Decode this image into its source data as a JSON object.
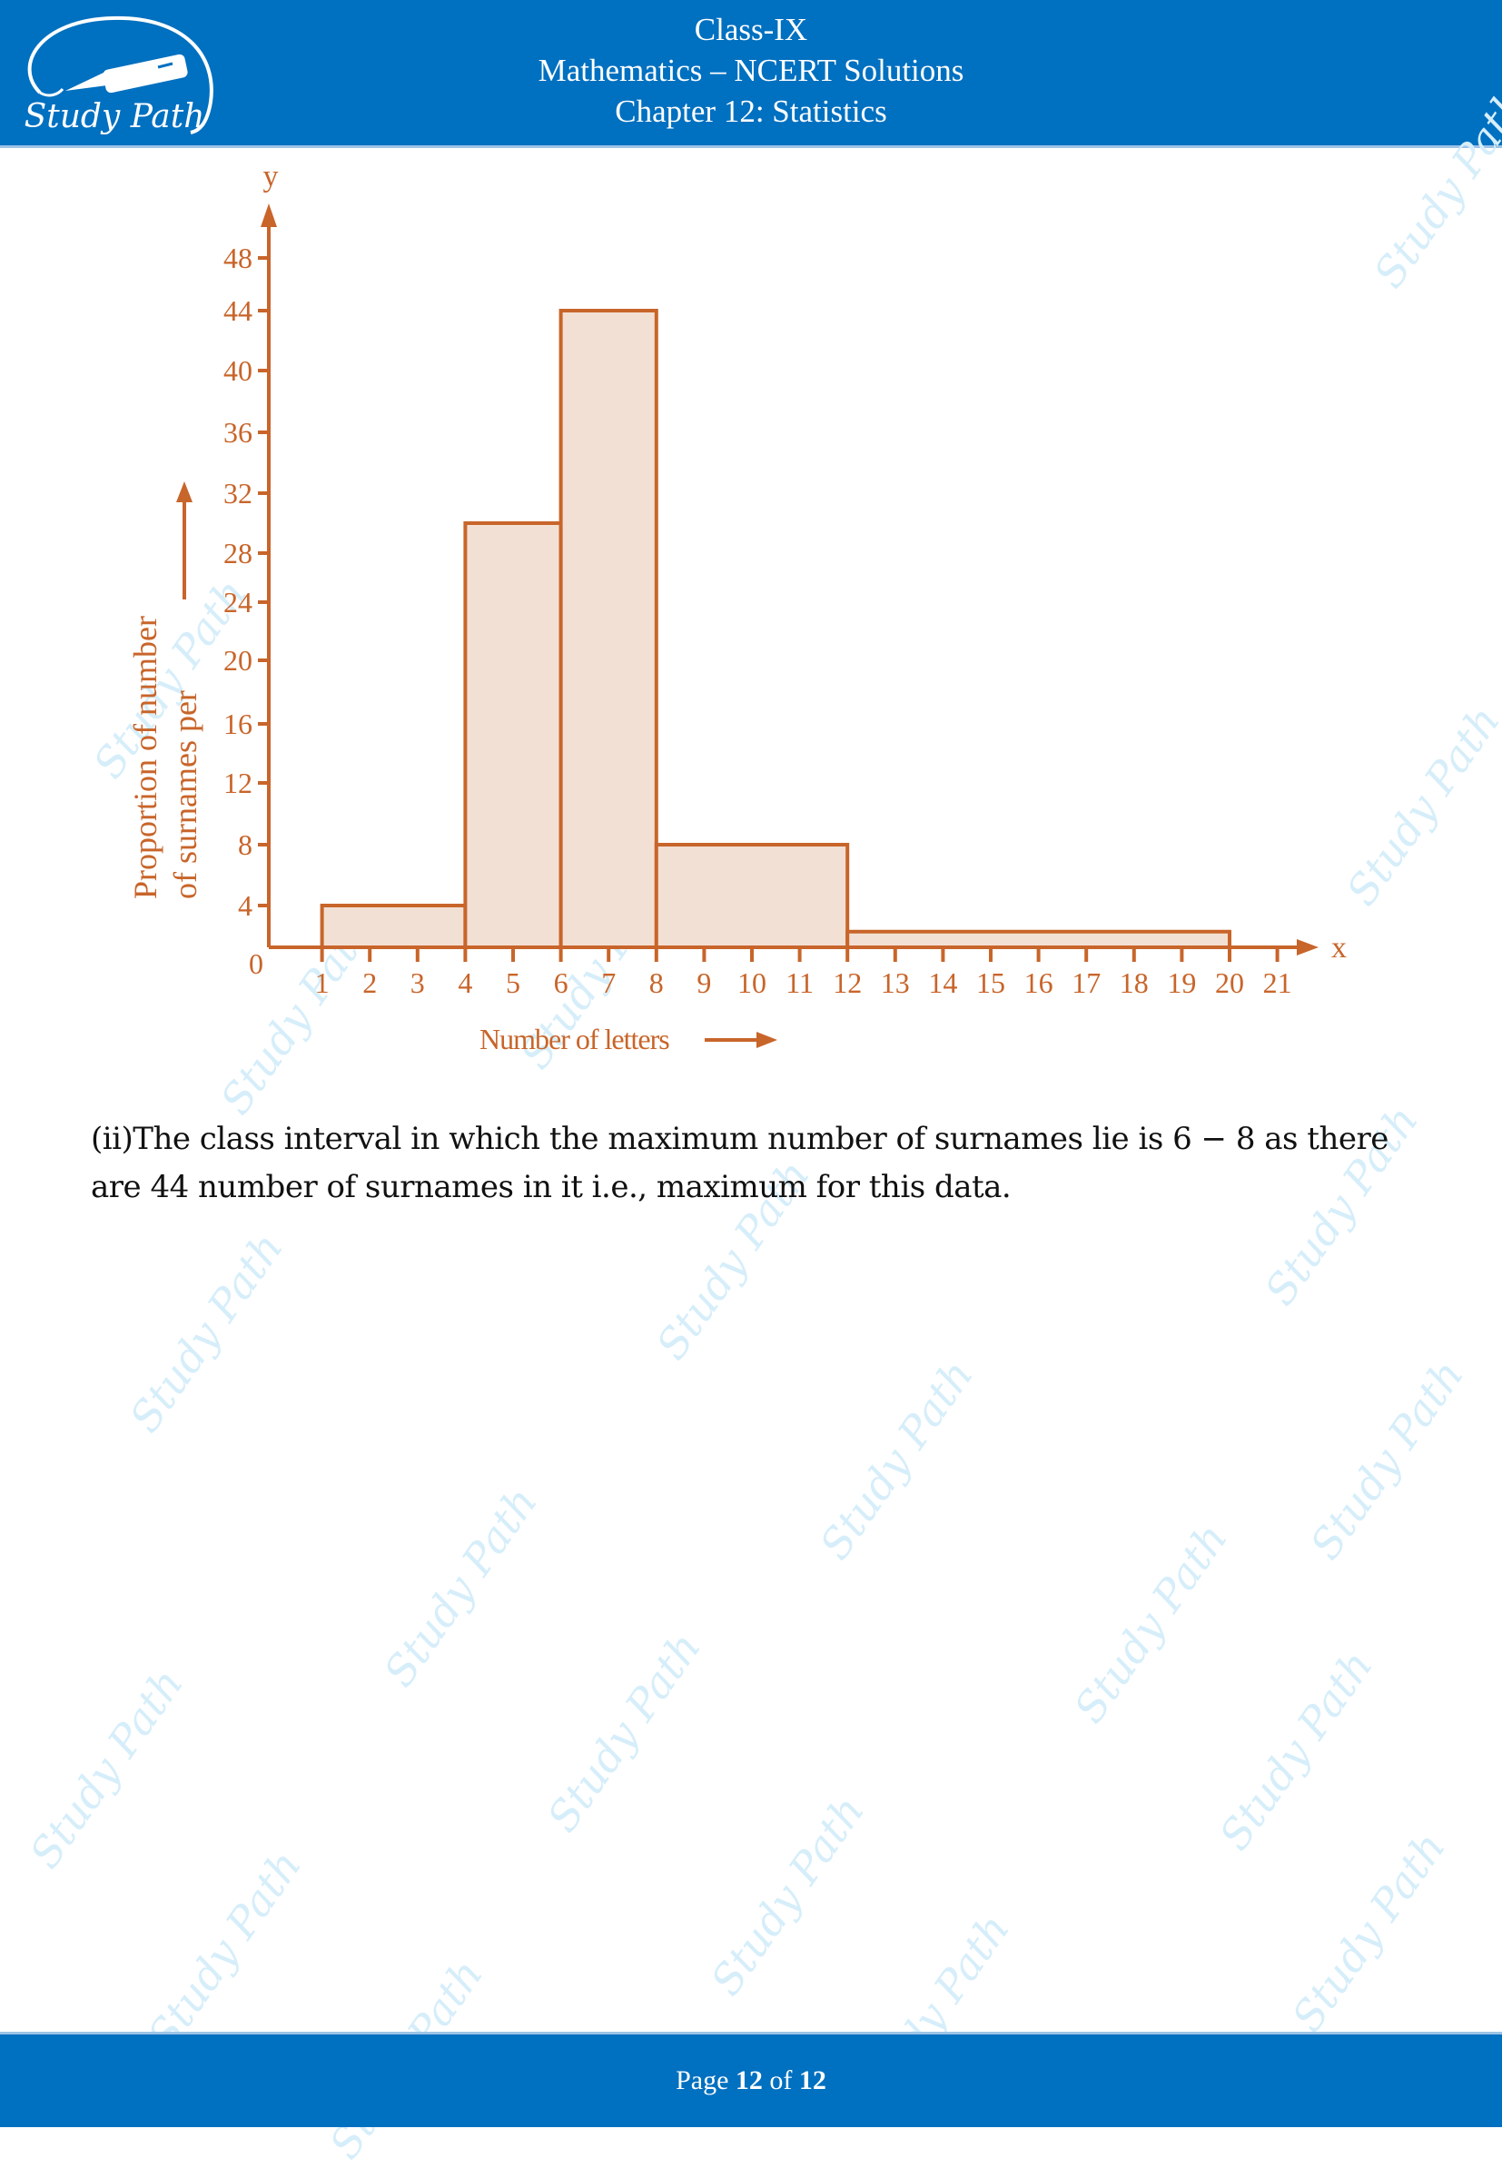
{
  "header": {
    "logo_text": "Study Path",
    "lines": [
      "Class-IX",
      "Mathematics – NCERT Solutions",
      "Chapter 12: Statistics"
    ]
  },
  "answer": {
    "line1": "(ii)The class interval in which the maximum number of surnames lie is 6 − 8 as there",
    "line2": "are 44 number of surnames in it i.e., maximum for this data."
  },
  "footer": {
    "prefix": "Page ",
    "current": "12",
    "middle": " of ",
    "total": "12"
  },
  "colors": {
    "brand_blue": "#0070c0",
    "chart_stroke": "#c8652a",
    "chart_fill": "#f3e0d4",
    "watermark": "#d6eefa"
  },
  "watermark_text": "Study Path",
  "chart_data": {
    "type": "bar",
    "subtype": "histogram",
    "title": "",
    "xlabel": "Number of letters",
    "ylabel": "Proportion of number of surnames per",
    "ylabel_lines": [
      "Proportion of number",
      "of surnames per"
    ],
    "x_axis_letter": "x",
    "y_axis_letter": "y",
    "origin_label": "0",
    "x_ticks": [
      1,
      2,
      3,
      4,
      5,
      6,
      7,
      8,
      9,
      10,
      11,
      12,
      13,
      14,
      15,
      16,
      17,
      18,
      19,
      20,
      21
    ],
    "y_ticks": [
      4,
      8,
      12,
      16,
      20,
      24,
      28,
      32,
      36,
      40,
      44,
      48
    ],
    "xlim": [
      0,
      21
    ],
    "ylim": [
      0,
      48
    ],
    "grid": false,
    "legend": null,
    "categories": [
      "1-4",
      "4-6",
      "6-8",
      "8-12",
      "12-20"
    ],
    "bins": [
      {
        "from": 1,
        "to": 4,
        "value": 4
      },
      {
        "from": 4,
        "to": 6,
        "value": 30
      },
      {
        "from": 6,
        "to": 8,
        "value": 44
      },
      {
        "from": 8,
        "to": 12,
        "value": 8
      },
      {
        "from": 12,
        "to": 20,
        "value": 1.5
      }
    ],
    "values": [
      4,
      30,
      44,
      8,
      1.5
    ]
  }
}
